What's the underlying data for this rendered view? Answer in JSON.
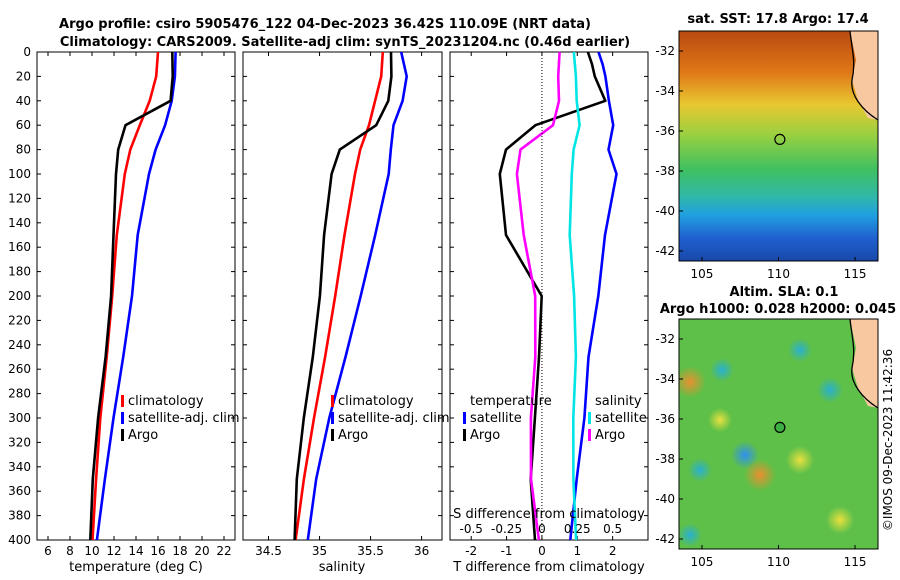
{
  "header": {
    "title_line1": "Argo profile: csiro 5905476_122 04-Dec-2023 36.42S 110.09E (NRT data)",
    "title_line2": "Climatology: CARS2009. Satellite-adj clim: synTS_20231204.nc (0.46d earlier)"
  },
  "credit": "©IMOS 09-Dec-2023 11:42:36",
  "colors": {
    "climatology": "#ff0000",
    "satellite": "#0000ff",
    "argo": "#000000",
    "sat_salinity": "#00e5e5",
    "argo_salinity": "#ff00ff"
  },
  "chart_data": [
    {
      "type": "line",
      "title": "",
      "xlabel": "temperature (deg C)",
      "ylabel": "",
      "xlim": [
        5,
        23
      ],
      "ylim": [
        400,
        0
      ],
      "xticks": [
        6,
        8,
        10,
        12,
        14,
        16,
        18,
        20,
        22
      ],
      "yticks": [
        0,
        20,
        40,
        60,
        80,
        100,
        120,
        140,
        160,
        180,
        200,
        220,
        240,
        260,
        280,
        300,
        320,
        340,
        360,
        380,
        400
      ],
      "legend": [
        "climatology",
        "satellite-adj. clim",
        "Argo"
      ],
      "series": [
        {
          "name": "climatology",
          "color": "#ff0000",
          "depth": [
            0,
            20,
            40,
            60,
            80,
            100,
            150,
            200,
            250,
            300,
            350,
            400
          ],
          "values": [
            16.0,
            15.8,
            15.3,
            14.3,
            13.5,
            13.0,
            12.3,
            11.8,
            11.3,
            10.8,
            10.4,
            10.0
          ]
        },
        {
          "name": "satellite-adj. clim",
          "color": "#0000ff",
          "depth": [
            0,
            20,
            40,
            60,
            80,
            100,
            150,
            200,
            250,
            300,
            350,
            400
          ],
          "values": [
            17.6,
            17.5,
            17.3,
            16.6,
            15.8,
            15.2,
            14.2,
            13.6,
            12.8,
            12.0,
            11.2,
            10.4
          ]
        },
        {
          "name": "Argo",
          "color": "#000000",
          "depth": [
            0,
            20,
            40,
            60,
            80,
            100,
            150,
            200,
            250,
            300,
            350,
            400
          ],
          "values": [
            17.3,
            17.3,
            17.2,
            13.0,
            12.4,
            12.2,
            12.0,
            11.7,
            11.2,
            10.6,
            10.1,
            9.8
          ]
        }
      ]
    },
    {
      "type": "line",
      "title": "",
      "xlabel": "salinity",
      "ylabel": "",
      "xlim": [
        34.25,
        36.2
      ],
      "ylim": [
        400,
        0
      ],
      "xticks": [
        34.5,
        35,
        35.5,
        36
      ],
      "legend": [
        "climatology",
        "satellite-adj. clim",
        "Argo"
      ],
      "series": [
        {
          "name": "climatology",
          "color": "#ff0000",
          "depth": [
            0,
            20,
            40,
            60,
            80,
            100,
            150,
            200,
            250,
            300,
            350,
            400
          ],
          "values": [
            35.62,
            35.6,
            35.55,
            35.48,
            35.4,
            35.35,
            35.25,
            35.15,
            35.05,
            34.95,
            34.85,
            34.76
          ]
        },
        {
          "name": "satellite-adj. clim",
          "color": "#0000ff",
          "depth": [
            0,
            20,
            40,
            60,
            80,
            100,
            150,
            200,
            250,
            300,
            350,
            400
          ],
          "values": [
            35.8,
            35.85,
            35.82,
            35.72,
            35.7,
            35.68,
            35.55,
            35.4,
            35.25,
            35.1,
            34.97,
            34.88
          ]
        },
        {
          "name": "Argo",
          "color": "#000000",
          "depth": [
            0,
            20,
            40,
            60,
            80,
            100,
            150,
            200,
            250,
            300,
            350,
            400
          ],
          "values": [
            35.7,
            35.7,
            35.68,
            35.55,
            35.2,
            35.12,
            35.05,
            35.0,
            34.93,
            34.85,
            34.78,
            34.75
          ]
        }
      ]
    },
    {
      "type": "line",
      "title": "",
      "xlabel": "T difference from climatology",
      "xlabel_top": "S difference from climatology",
      "xlim": [
        -2.6,
        3.0
      ],
      "ylim": [
        400,
        0
      ],
      "xticks": [
        -2,
        -1,
        0,
        1,
        2
      ],
      "xticks_s_labels": [
        "-0.5",
        "-0.25",
        "0",
        "0.25",
        "0.5"
      ],
      "legend_temperature_title": "temperature",
      "legend_salinity_title": "salinity",
      "legend_temperature": [
        "satellite",
        "Argo"
      ],
      "legend_salinity": [
        "satellite",
        "Argo"
      ],
      "series": [
        {
          "name": "temperature satellite",
          "color": "#0000ff",
          "depth": [
            0,
            10,
            20,
            40,
            60,
            80,
            100,
            150,
            200,
            250,
            300,
            350,
            400
          ],
          "values": [
            1.6,
            1.7,
            1.8,
            1.9,
            2.0,
            1.9,
            2.1,
            1.8,
            1.6,
            1.3,
            1.2,
            1.0,
            0.8
          ]
        },
        {
          "name": "temperature Argo",
          "color": "#000000",
          "depth": [
            0,
            10,
            20,
            40,
            60,
            80,
            100,
            150,
            200,
            250,
            300,
            350,
            400
          ],
          "values": [
            1.3,
            1.4,
            1.5,
            1.8,
            -0.2,
            -1.0,
            -1.2,
            -1.0,
            0.0,
            -0.1,
            -0.2,
            -0.3,
            -0.2
          ]
        },
        {
          "name": "salinity satellite",
          "color": "#00e5e5",
          "depth": [
            0,
            20,
            40,
            60,
            80,
            100,
            150,
            200,
            250,
            300,
            350,
            400
          ],
          "values": [
            0.9,
            0.95,
            1.0,
            1.05,
            0.9,
            0.85,
            0.8,
            0.9,
            0.95,
            0.9,
            0.9,
            0.95
          ]
        },
        {
          "name": "salinity Argo",
          "color": "#ff00ff",
          "depth": [
            0,
            20,
            40,
            60,
            80,
            100,
            150,
            200,
            250,
            300,
            350,
            400
          ],
          "values": [
            0.5,
            0.45,
            0.5,
            0.3,
            -0.6,
            -0.7,
            -0.5,
            -0.2,
            -0.2,
            -0.3,
            -0.3,
            -0.1
          ]
        }
      ]
    },
    {
      "type": "heatmap",
      "title": "sat. SST: 17.8 Argo: 17.4",
      "xlim": [
        103.5,
        116.5
      ],
      "ylim": [
        -42.5,
        -31
      ],
      "xticks": [
        105,
        110,
        115
      ],
      "yticks": [
        -32,
        -34,
        -36,
        -38,
        -40,
        -42
      ],
      "argo_position": [
        110.09,
        -36.42
      ]
    },
    {
      "type": "heatmap",
      "title_line1": "Altim. SLA: 0.1",
      "title_line2": "Argo h1000: 0.028 h2000: 0.045",
      "xlim": [
        103.5,
        116.5
      ],
      "ylim": [
        -42.5,
        -31
      ],
      "xticks": [
        105,
        110,
        115
      ],
      "yticks": [
        -32,
        -34,
        -36,
        -38,
        -40,
        -42
      ],
      "argo_position": [
        110.09,
        -36.42
      ]
    }
  ]
}
